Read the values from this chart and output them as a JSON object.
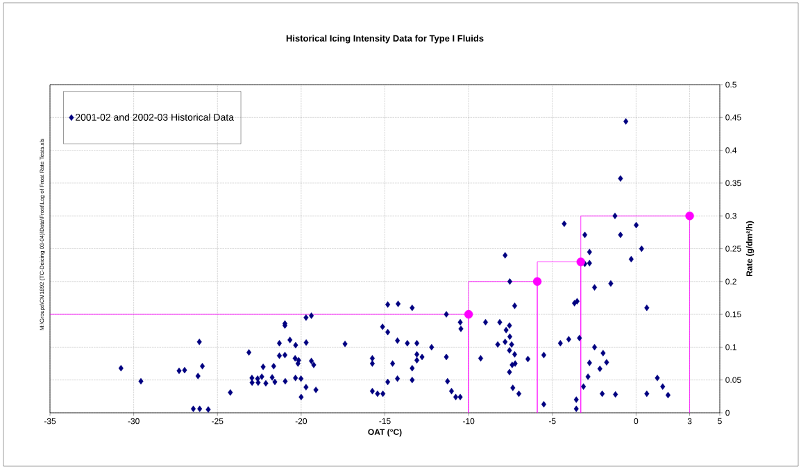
{
  "chart_data": {
    "type": "scatter",
    "title": "Historical Icing Intensity Data for Type I Fluids",
    "xlabel": "OAT (°C)",
    "ylabel": "Rate (g/dm²/h)",
    "annotations": [
      "M:\\Groups\\CM1892 (TC-Deicing 03-04)\\Data\\Frost\\Log of Frost Rate Tests.xls"
    ],
    "xlim": [
      -35,
      5
    ],
    "ylim": [
      0,
      0.5
    ],
    "xticks": [
      -35,
      -30,
      -25,
      -20,
      -15,
      -10,
      -5,
      0,
      {
        "value": 3.2,
        "label": "3"
      },
      5
    ],
    "yticks": [
      0,
      0.05,
      0.1,
      0.15,
      0.2,
      0.25,
      0.3,
      0.35,
      0.4,
      0.45,
      0.5
    ],
    "grid": true,
    "legend": "top left",
    "series": [
      {
        "name": "2001-02 and 2002-03 Historical Data",
        "marker": "diamond",
        "color": "#000080",
        "x": [
          -30.76,
          -29.57,
          -27.29,
          -26.96,
          -26.08,
          -25.9,
          -26.16,
          -26.44,
          -26.06,
          -25.55,
          -24.23,
          -23.12,
          -22.94,
          -22.93,
          -22.6,
          -22.57,
          -22.35,
          -22.27,
          -22.11,
          -21.73,
          -21.64,
          -21.57,
          -21.3,
          -20.97,
          -20.97,
          -20.67,
          -20.33,
          -21.3,
          -20.97,
          -20.95,
          -20.36,
          -20.15,
          -20.19,
          -20.34,
          -20.01,
          -20.0,
          -19.71,
          -19.7,
          -19.71,
          -19.39,
          -19.39,
          -19.25,
          -19.12,
          -17.38,
          -15.75,
          -15.75,
          -15.75,
          -15.44,
          -15.12,
          -14.83,
          -14.21,
          -13.37,
          -15.14,
          -14.83,
          -14.25,
          -13.66,
          -13.09,
          -12.21,
          -14.54,
          -14.83,
          -14.25,
          -13.37,
          -13.37,
          -13.09,
          -13.09,
          -12.78,
          -11.33,
          -11.33,
          -11.26,
          -11.02,
          -10.77,
          -10.5,
          -10.5,
          -10.46,
          -9.28,
          -8.99,
          -8.26,
          -8.14,
          -7.82,
          -7.76,
          -7.56,
          -7.54,
          -7.43,
          -7.56,
          -7.25,
          -7.4,
          -7.22,
          -7.56,
          -7.36,
          -7.0,
          -6.46,
          -5.51,
          -5.51,
          -7.54,
          -7.25,
          -7.82,
          -0.61,
          -0.93,
          -1.26,
          -4.29,
          0.01,
          -3.06,
          -0.93,
          -2.78,
          0.33,
          -3.06,
          -2.78,
          -0.29,
          -2.48,
          -1.51,
          -3.68,
          -3.52,
          0.64,
          -4.52,
          -4.02,
          -3.38,
          -2.48,
          -1.97,
          -2.78,
          -1.76,
          -2.16,
          -2.87,
          -3.14,
          -2.02,
          -1.23,
          0.64,
          1.27,
          1.59,
          1.91,
          -3.57,
          -3.57
        ],
        "values": [
          0.068,
          0.048,
          0.064,
          0.065,
          0.108,
          0.071,
          0.056,
          0.006,
          0.006,
          0.005,
          0.031,
          0.092,
          0.053,
          0.046,
          0.052,
          0.046,
          0.055,
          0.07,
          0.045,
          0.054,
          0.071,
          0.047,
          0.106,
          0.136,
          0.133,
          0.111,
          0.103,
          0.087,
          0.088,
          0.048,
          0.083,
          0.08,
          0.075,
          0.053,
          0.052,
          0.024,
          0.039,
          0.107,
          0.145,
          0.148,
          0.079,
          0.073,
          0.035,
          0.105,
          0.083,
          0.075,
          0.033,
          0.029,
          0.029,
          0.165,
          0.166,
          0.16,
          0.131,
          0.123,
          0.11,
          0.106,
          0.106,
          0.1,
          0.075,
          0.047,
          0.052,
          0.05,
          0.068,
          0.089,
          0.08,
          0.085,
          0.15,
          0.085,
          0.048,
          0.033,
          0.024,
          0.024,
          0.138,
          0.128,
          0.083,
          0.138,
          0.104,
          0.138,
          0.108,
          0.126,
          0.133,
          0.116,
          0.104,
          0.095,
          0.089,
          0.073,
          0.075,
          0.062,
          0.038,
          0.029,
          0.082,
          0.088,
          0.013,
          0.2,
          0.163,
          0.24,
          0.444,
          0.357,
          0.3,
          0.288,
          0.286,
          0.271,
          0.271,
          0.245,
          0.25,
          0.227,
          0.228,
          0.234,
          0.191,
          0.197,
          0.167,
          0.17,
          0.16,
          0.106,
          0.112,
          0.114,
          0.1,
          0.091,
          0.076,
          0.077,
          0.067,
          0.055,
          0.04,
          0.029,
          0.028,
          0.029,
          0.053,
          0.04,
          0.027,
          0.02,
          0.006
        ]
      },
      {
        "type": "line",
        "marker": "none",
        "color": "#ff00ff",
        "x": [
          -35,
          -10,
          -10,
          -10,
          -5.9,
          -5.9,
          -5.9,
          -3.3,
          -3.3,
          -3.3,
          3.2,
          3.2
        ],
        "values": [
          0.15,
          0.15,
          0,
          0.2,
          0.2,
          0,
          0.23,
          0.23,
          0,
          0.3,
          0.3,
          0
        ]
      },
      {
        "marker": "circle",
        "color": "#ff00ff",
        "x": [
          -10,
          -5.9,
          -3.3,
          3.2
        ],
        "values": [
          0.15,
          0.2,
          0.23,
          0.3
        ]
      }
    ]
  }
}
